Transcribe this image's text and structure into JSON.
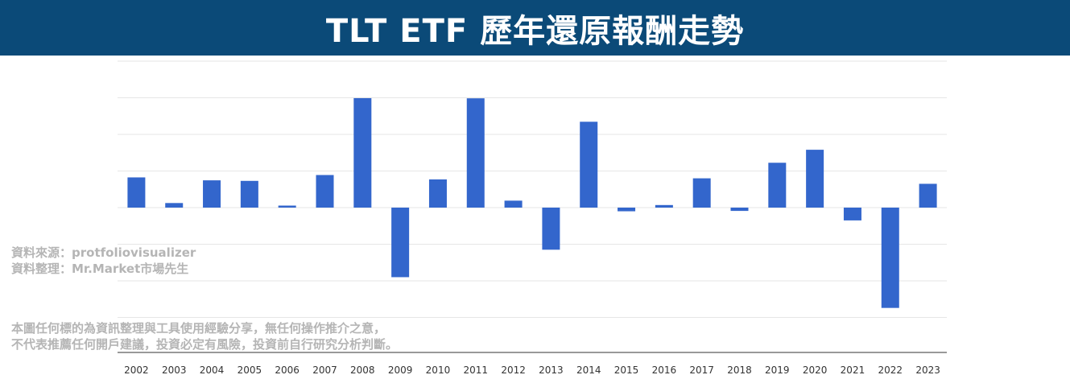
{
  "banner": {
    "title": "TLT ETF 歷年還原報酬走勢",
    "background_color": "#0b4a78",
    "text_color": "#ffffff"
  },
  "notes": {
    "source": "資料來源：protfoliovisualizer",
    "compiled_by": "資料整理：Mr.Market市場先生",
    "disclaimer_line1": "本圖任何標的為資訊整理與工具使用經驗分享，無任何操作推介之意，",
    "disclaimer_line2": "不代表推薦任何開戶建議，投資必定有風險，投資前自行研究分析判斷。"
  },
  "chart_data": {
    "type": "bar",
    "categories": [
      "2002",
      "2003",
      "2004",
      "2005",
      "2006",
      "2007",
      "2008",
      "2009",
      "2010",
      "2011",
      "2012",
      "2013",
      "2014",
      "2015",
      "2016",
      "2017",
      "2018",
      "2019",
      "2020",
      "2021",
      "2022",
      "2023"
    ],
    "values": [
      16.5,
      2.5,
      14.9,
      14.6,
      1.1,
      17.8,
      59.8,
      -38.0,
      15.4,
      59.7,
      3.8,
      -23.0,
      46.9,
      -2.0,
      1.4,
      16.0,
      -1.8,
      24.5,
      31.6,
      -7.0,
      -54.8,
      13.0
    ],
    "title": "",
    "xlabel": "",
    "ylabel": "",
    "ylim": [
      -70,
      70
    ],
    "grid": true,
    "y_tick_labels_shown": false,
    "bar_color": "#3366cc",
    "grid_color": "#e6e6e6",
    "axis_color": "#333333"
  }
}
